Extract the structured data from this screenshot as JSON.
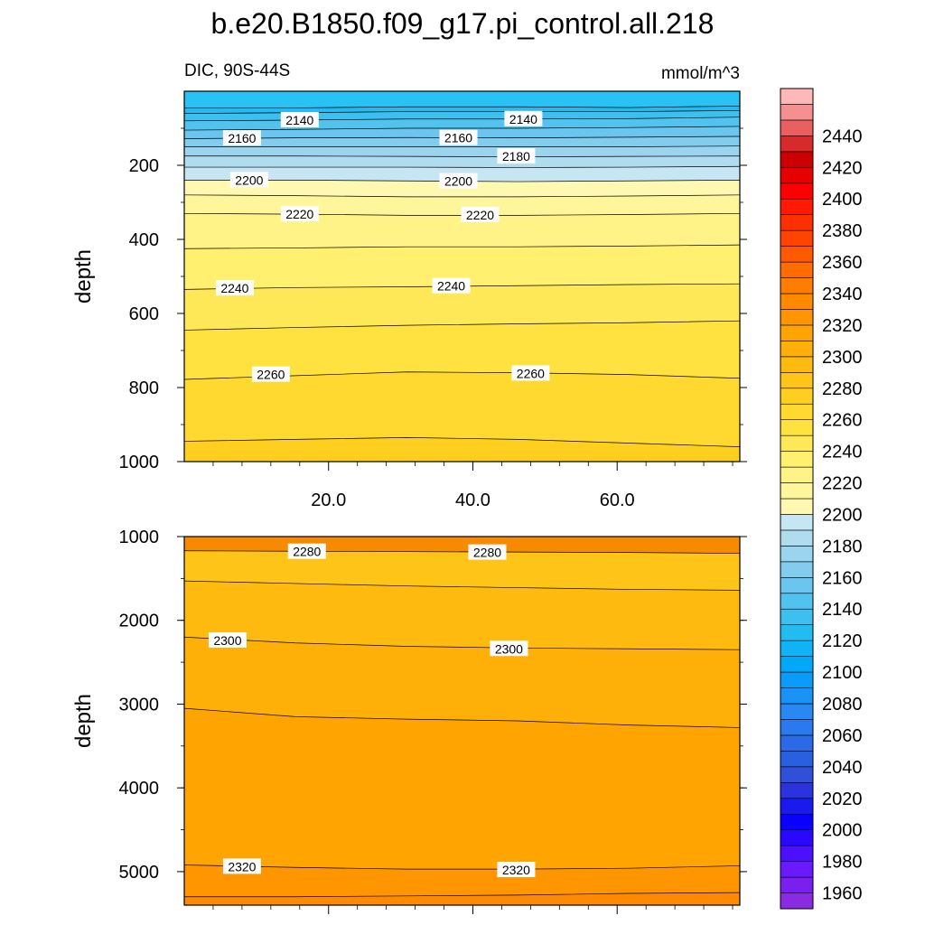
{
  "title": "b.e20.B1850.f09_g17.pi_control.all.218",
  "chart_data": [
    {
      "type": "contour",
      "left_label": "DIC, 90S-44S",
      "right_label": "mmol/m^3",
      "ylabel": "depth",
      "xlim": [
        0,
        77
      ],
      "ylim": [
        1000,
        0
      ],
      "xticks": [
        20,
        40,
        60
      ],
      "xtick_labels": [
        "20.0",
        "40.0",
        "60.0"
      ],
      "yticks": [
        200,
        400,
        600,
        800,
        1000
      ],
      "ytick_labels": [
        "200",
        "400",
        "600",
        "800",
        "1000"
      ],
      "contours": [
        {
          "level": 2120,
          "depths": [
            45,
            45,
            42,
            42,
            44,
            40
          ]
        },
        {
          "level": 2130,
          "depths": [
            60,
            58,
            55,
            55,
            55,
            52
          ]
        },
        {
          "level": 2140,
          "depths": [
            80,
            78,
            75,
            75,
            74,
            70
          ]
        },
        {
          "level": 2150,
          "depths": [
            105,
            103,
            100,
            100,
            98,
            95
          ]
        },
        {
          "level": 2160,
          "depths": [
            128,
            126,
            125,
            126,
            124,
            122
          ]
        },
        {
          "level": 2170,
          "depths": [
            150,
            150,
            150,
            150,
            150,
            148
          ]
        },
        {
          "level": 2180,
          "depths": [
            175,
            175,
            176,
            177,
            176,
            175
          ]
        },
        {
          "level": 2190,
          "depths": [
            205,
            205,
            205,
            206,
            205,
            203
          ]
        },
        {
          "level": 2200,
          "depths": [
            240,
            240,
            242,
            244,
            242,
            240
          ]
        },
        {
          "level": 2210,
          "depths": [
            280,
            282,
            285,
            285,
            283,
            280
          ]
        },
        {
          "level": 2220,
          "depths": [
            330,
            332,
            335,
            335,
            333,
            330
          ]
        },
        {
          "level": 2230,
          "depths": [
            425,
            423,
            420,
            420,
            418,
            415
          ]
        },
        {
          "level": 2240,
          "depths": [
            535,
            530,
            528,
            525,
            522,
            520
          ]
        },
        {
          "level": 2250,
          "depths": [
            645,
            638,
            632,
            628,
            625,
            620
          ]
        },
        {
          "level": 2260,
          "depths": [
            778,
            768,
            758,
            760,
            765,
            775
          ]
        },
        {
          "level": 2270,
          "depths": [
            945,
            940,
            935,
            940,
            950,
            960
          ]
        }
      ],
      "contour_labels": [
        {
          "text": "2140",
          "x": 16,
          "y": 78
        },
        {
          "text": "2140",
          "x": 47,
          "y": 75
        },
        {
          "text": "2160",
          "x": 8,
          "y": 127
        },
        {
          "text": "2160",
          "x": 38,
          "y": 126
        },
        {
          "text": "2180",
          "x": 46,
          "y": 176
        },
        {
          "text": "2200",
          "x": 9,
          "y": 240
        },
        {
          "text": "2200",
          "x": 38,
          "y": 243
        },
        {
          "text": "2220",
          "x": 16,
          "y": 332
        },
        {
          "text": "2220",
          "x": 41,
          "y": 334
        },
        {
          "text": "2240",
          "x": 7,
          "y": 532
        },
        {
          "text": "2240",
          "x": 37,
          "y": 526
        },
        {
          "text": "2260",
          "x": 12,
          "y": 765
        },
        {
          "text": "2260",
          "x": 48,
          "y": 762
        }
      ]
    },
    {
      "type": "contour",
      "ylabel": "depth",
      "xlim": [
        0,
        77
      ],
      "ylim": [
        5400,
        1000
      ],
      "xticks": [
        20,
        40,
        60
      ],
      "yticks": [
        1000,
        2000,
        3000,
        4000,
        5000
      ],
      "ytick_labels": [
        "1000",
        "2000",
        "3000",
        "4000",
        "5000"
      ],
      "contours": [
        {
          "level": 2280,
          "depths": [
            1170,
            1175,
            1180,
            1185,
            1190,
            1200
          ]
        },
        {
          "level": 2290,
          "depths": [
            1530,
            1560,
            1590,
            1610,
            1630,
            1640
          ]
        },
        {
          "level": 2300,
          "depths": [
            2200,
            2270,
            2310,
            2330,
            2340,
            2350
          ]
        },
        {
          "level": 2310,
          "depths": [
            3050,
            3150,
            3180,
            3200,
            3250,
            3280
          ]
        },
        {
          "level": 2320,
          "depths": [
            4920,
            4950,
            4970,
            4970,
            4960,
            4930
          ]
        },
        {
          "level": 2330,
          "depths": [
            5300,
            5300,
            5290,
            5280,
            5260,
            5250
          ]
        }
      ],
      "contour_labels": [
        {
          "text": "2280",
          "x": 17,
          "y": 1180
        },
        {
          "text": "2280",
          "x": 42,
          "y": 1190
        },
        {
          "text": "2300",
          "x": 6,
          "y": 2240
        },
        {
          "text": "2300",
          "x": 45,
          "y": 2340
        },
        {
          "text": "2320",
          "x": 8,
          "y": 4940
        },
        {
          "text": "2320",
          "x": 46,
          "y": 4980
        }
      ]
    }
  ],
  "colorbar": {
    "levels": [
      1950,
      1960,
      1970,
      1980,
      1990,
      2000,
      2010,
      2020,
      2030,
      2040,
      2050,
      2060,
      2070,
      2080,
      2090,
      2100,
      2110,
      2120,
      2130,
      2140,
      2150,
      2160,
      2170,
      2180,
      2190,
      2200,
      2210,
      2220,
      2230,
      2240,
      2250,
      2260,
      2270,
      2280,
      2290,
      2300,
      2310,
      2320,
      2330,
      2340,
      2350,
      2360,
      2370,
      2380,
      2390,
      2400,
      2410,
      2420,
      2430,
      2440,
      2450
    ],
    "colors": [
      "#8a2be2",
      "#7a1ff0",
      "#6a1aff",
      "#4a10ff",
      "#2a08ff",
      "#0a00ff",
      "#1a1aee",
      "#2a33dd",
      "#3050d8",
      "#2860e0",
      "#2a6ae6",
      "#2a7aee",
      "#2a88f2",
      "#1a92f6",
      "#0a9cfa",
      "#00a8f8",
      "#10b4f4",
      "#22bcf0",
      "#3cc0f0",
      "#52c2ee",
      "#6ac6ee",
      "#82ccee",
      "#9ad4ee",
      "#b0dcf0",
      "#c6e6f4",
      "#fff8b0",
      "#fff59a",
      "#fff388",
      "#fff070",
      "#ffe858",
      "#ffe140",
      "#ffd830",
      "#ffcf20",
      "#ffc418",
      "#ffba10",
      "#ffb008",
      "#ffa400",
      "#ff9600",
      "#ff8a00",
      "#ff7e00",
      "#ff6c00",
      "#ff5a00",
      "#ff4400",
      "#ff3000",
      "#ff1a00",
      "#ff0000",
      "#e60000",
      "#cc0000",
      "#d82a2a",
      "#e86060",
      "#f59090",
      "#ffb8b8"
    ],
    "tick_labels": [
      "1960",
      "1980",
      "2000",
      "2020",
      "2040",
      "2060",
      "2080",
      "2100",
      "2120",
      "2140",
      "2160",
      "2180",
      "2200",
      "2220",
      "2240",
      "2260",
      "2280",
      "2300",
      "2320",
      "2340",
      "2360",
      "2380",
      "2400",
      "2420",
      "2440"
    ]
  }
}
